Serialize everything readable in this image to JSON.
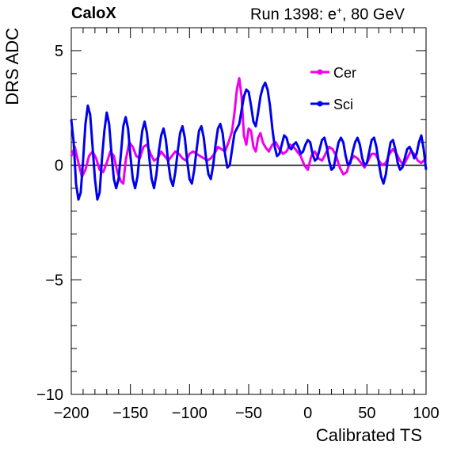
{
  "header": {
    "experiment": "CaloX",
    "run_prefix": "Run 1398: e",
    "run_sup": "+",
    "run_suffix": ", 80 GeV"
  },
  "chart_data": {
    "type": "line",
    "xlabel": "Calibrated TS",
    "ylabel": "DRS ADC",
    "xlim": [
      -200,
      100
    ],
    "ylim": [
      -10,
      6
    ],
    "x_ticks": [
      -200,
      -150,
      -100,
      -50,
      0,
      50,
      100
    ],
    "y_ticks": [
      -10,
      -5,
      0,
      5
    ],
    "grid": false,
    "legend_position": "top-right",
    "reference_line_y": 0,
    "series": [
      {
        "name": "Cer",
        "color": "#ee00ee",
        "points": [
          [
            -200,
            0.4
          ],
          [
            -197,
            0.8
          ],
          [
            -194,
            0.1
          ],
          [
            -191,
            -0.5
          ],
          [
            -188,
            -0.2
          ],
          [
            -185,
            0.4
          ],
          [
            -182,
            0.6
          ],
          [
            -179,
            0.3
          ],
          [
            -176,
            -0.2
          ],
          [
            -173,
            -0.3
          ],
          [
            -170,
            0.1
          ],
          [
            -167,
            0.6
          ],
          [
            -164,
            0.4
          ],
          [
            -161,
            -0.3
          ],
          [
            -158,
            -0.7
          ],
          [
            -156,
            -0.8
          ],
          [
            -154,
            0.2
          ],
          [
            -151,
            1.0
          ],
          [
            -148,
            0.8
          ],
          [
            -145,
            0.4
          ],
          [
            -142,
            0.3
          ],
          [
            -139,
            0.8
          ],
          [
            -136,
            0.9
          ],
          [
            -133,
            0.5
          ],
          [
            -130,
            0.2
          ],
          [
            -127,
            0.3
          ],
          [
            -124,
            0.6
          ],
          [
            -121,
            0.4
          ],
          [
            -118,
            0.2
          ],
          [
            -115,
            0.4
          ],
          [
            -112,
            0.6
          ],
          [
            -109,
            0.5
          ],
          [
            -106,
            0.3
          ],
          [
            -103,
            0.2
          ],
          [
            -100,
            0.5
          ],
          [
            -97,
            0.6
          ],
          [
            -94,
            0.5
          ],
          [
            -91,
            0.4
          ],
          [
            -88,
            0.3
          ],
          [
            -85,
            0.2
          ],
          [
            -82,
            0.3
          ],
          [
            -79,
            0.5
          ],
          [
            -76,
            0.8
          ],
          [
            -73,
            0.7
          ],
          [
            -70,
            0.6
          ],
          [
            -67,
            1.0
          ],
          [
            -64,
            1.5
          ],
          [
            -62,
            2.3
          ],
          [
            -60,
            3.3
          ],
          [
            -58,
            3.8
          ],
          [
            -56,
            3.0
          ],
          [
            -54,
            1.3
          ],
          [
            -52,
            0.9
          ],
          [
            -50,
            1.6
          ],
          [
            -48,
            1.5
          ],
          [
            -46,
            0.8
          ],
          [
            -44,
            0.6
          ],
          [
            -42,
            1.2
          ],
          [
            -40,
            1.4
          ],
          [
            -38,
            1.0
          ],
          [
            -36,
            0.8
          ],
          [
            -33,
            0.6
          ],
          [
            -30,
            0.9
          ],
          [
            -27,
            1.0
          ],
          [
            -24,
            0.7
          ],
          [
            -21,
            0.5
          ],
          [
            -18,
            0.6
          ],
          [
            -15,
            0.9
          ],
          [
            -12,
            0.8
          ],
          [
            -9,
            0.6
          ],
          [
            -6,
            0.4
          ],
          [
            -3,
            0.0
          ],
          [
            0,
            -0.2
          ],
          [
            3,
            0.4
          ],
          [
            6,
            0.6
          ],
          [
            9,
            0.3
          ],
          [
            12,
            0.2
          ],
          [
            15,
            0.5
          ],
          [
            18,
            0.8
          ],
          [
            21,
            0.7
          ],
          [
            24,
            0.4
          ],
          [
            27,
            -0.1
          ],
          [
            30,
            -0.4
          ],
          [
            33,
            -0.3
          ],
          [
            36,
            0.2
          ],
          [
            39,
            0.4
          ],
          [
            42,
            0.3
          ],
          [
            45,
            0.1
          ],
          [
            48,
            -0.1
          ],
          [
            51,
            0.2
          ],
          [
            54,
            0.5
          ],
          [
            57,
            0.5
          ],
          [
            60,
            0.2
          ],
          [
            63,
            0.0
          ],
          [
            66,
            0.1
          ],
          [
            69,
            0.5
          ],
          [
            72,
            0.7
          ],
          [
            75,
            0.5
          ],
          [
            78,
            0.2
          ],
          [
            81,
            0.0
          ],
          [
            84,
            0.3
          ],
          [
            87,
            0.6
          ],
          [
            90,
            0.5
          ],
          [
            93,
            0.2
          ],
          [
            96,
            0.1
          ],
          [
            100,
            0.3
          ]
        ]
      },
      {
        "name": "Sci",
        "color": "#0000ee",
        "points": [
          [
            -200,
            2.0
          ],
          [
            -198,
            1.0
          ],
          [
            -196,
            -0.8
          ],
          [
            -194,
            -1.5
          ],
          [
            -192,
            -1.2
          ],
          [
            -190,
            0.2
          ],
          [
            -188,
            1.8
          ],
          [
            -186,
            2.6
          ],
          [
            -184,
            2.2
          ],
          [
            -182,
            0.8
          ],
          [
            -180,
            -0.6
          ],
          [
            -178,
            -1.5
          ],
          [
            -176,
            -1.2
          ],
          [
            -174,
            0.3
          ],
          [
            -172,
            1.5
          ],
          [
            -170,
            2.3
          ],
          [
            -168,
            1.8
          ],
          [
            -166,
            0.5
          ],
          [
            -164,
            -0.6
          ],
          [
            -162,
            -1.0
          ],
          [
            -160,
            -0.6
          ],
          [
            -158,
            0.5
          ],
          [
            -156,
            1.7
          ],
          [
            -154,
            2.1
          ],
          [
            -152,
            1.6
          ],
          [
            -150,
            0.4
          ],
          [
            -148,
            -0.6
          ],
          [
            -146,
            -1.0
          ],
          [
            -144,
            -0.5
          ],
          [
            -142,
            0.6
          ],
          [
            -140,
            1.5
          ],
          [
            -138,
            1.9
          ],
          [
            -136,
            1.4
          ],
          [
            -134,
            0.3
          ],
          [
            -132,
            -0.6
          ],
          [
            -130,
            -1.0
          ],
          [
            -128,
            -0.4
          ],
          [
            -126,
            0.6
          ],
          [
            -124,
            1.3
          ],
          [
            -122,
            1.6
          ],
          [
            -120,
            1.1
          ],
          [
            -118,
            0.1
          ],
          [
            -116,
            -0.6
          ],
          [
            -114,
            -0.9
          ],
          [
            -112,
            -0.3
          ],
          [
            -110,
            0.6
          ],
          [
            -108,
            1.4
          ],
          [
            -106,
            1.7
          ],
          [
            -104,
            1.2
          ],
          [
            -102,
            0.2
          ],
          [
            -100,
            -0.6
          ],
          [
            -98,
            -0.8
          ],
          [
            -96,
            -0.2
          ],
          [
            -94,
            0.7
          ],
          [
            -92,
            1.5
          ],
          [
            -90,
            1.7
          ],
          [
            -88,
            1.2
          ],
          [
            -86,
            0.3
          ],
          [
            -84,
            -0.4
          ],
          [
            -82,
            -0.6
          ],
          [
            -80,
            0.0
          ],
          [
            -78,
            0.9
          ],
          [
            -76,
            1.6
          ],
          [
            -74,
            1.8
          ],
          [
            -72,
            1.4
          ],
          [
            -70,
            0.5
          ],
          [
            -68,
            -0.1
          ],
          [
            -66,
            0.0
          ],
          [
            -64,
            0.7
          ],
          [
            -62,
            1.4
          ],
          [
            -60,
            1.6
          ],
          [
            -58,
            1.8
          ],
          [
            -56,
            2.4
          ],
          [
            -54,
            3.0
          ],
          [
            -52,
            3.3
          ],
          [
            -50,
            3.2
          ],
          [
            -48,
            2.6
          ],
          [
            -46,
            1.9
          ],
          [
            -44,
            1.7
          ],
          [
            -42,
            2.3
          ],
          [
            -40,
            3.0
          ],
          [
            -38,
            3.4
          ],
          [
            -36,
            3.6
          ],
          [
            -34,
            3.3
          ],
          [
            -32,
            2.6
          ],
          [
            -30,
            1.6
          ],
          [
            -28,
            0.8
          ],
          [
            -26,
            0.4
          ],
          [
            -24,
            0.5
          ],
          [
            -22,
            0.9
          ],
          [
            -20,
            1.3
          ],
          [
            -18,
            1.2
          ],
          [
            -16,
            0.8
          ],
          [
            -14,
            0.7
          ],
          [
            -12,
            0.9
          ],
          [
            -10,
            1.0
          ],
          [
            -8,
            0.8
          ],
          [
            -6,
            0.5
          ],
          [
            -4,
            0.6
          ],
          [
            -2,
            0.9
          ],
          [
            0,
            1.1
          ],
          [
            2,
            1.0
          ],
          [
            4,
            0.5
          ],
          [
            6,
            0.2
          ],
          [
            8,
            0.3
          ],
          [
            10,
            0.7
          ],
          [
            12,
            1.1
          ],
          [
            14,
            1.2
          ],
          [
            16,
            0.8
          ],
          [
            18,
            0.2
          ],
          [
            20,
            -0.2
          ],
          [
            22,
            -0.1
          ],
          [
            24,
            0.5
          ],
          [
            26,
            1.0
          ],
          [
            28,
            1.2
          ],
          [
            30,
            1.0
          ],
          [
            32,
            0.4
          ],
          [
            34,
            0.0
          ],
          [
            36,
            0.1
          ],
          [
            38,
            0.6
          ],
          [
            40,
            1.0
          ],
          [
            42,
            1.2
          ],
          [
            44,
            0.9
          ],
          [
            46,
            0.3
          ],
          [
            48,
            0.0
          ],
          [
            50,
            0.1
          ],
          [
            52,
            0.6
          ],
          [
            54,
            1.1
          ],
          [
            56,
            1.2
          ],
          [
            58,
            0.8
          ],
          [
            60,
            0.1
          ],
          [
            62,
            -0.5
          ],
          [
            64,
            -0.8
          ],
          [
            66,
            -0.4
          ],
          [
            68,
            0.4
          ],
          [
            70,
            1.0
          ],
          [
            72,
            1.1
          ],
          [
            74,
            0.7
          ],
          [
            76,
            0.1
          ],
          [
            78,
            -0.2
          ],
          [
            80,
            -0.1
          ],
          [
            82,
            0.3
          ],
          [
            84,
            0.7
          ],
          [
            86,
            0.8
          ],
          [
            88,
            0.6
          ],
          [
            90,
            0.3
          ],
          [
            92,
            0.5
          ],
          [
            94,
            1.0
          ],
          [
            96,
            1.3
          ],
          [
            98,
            0.7
          ],
          [
            100,
            -0.2
          ]
        ]
      }
    ]
  }
}
